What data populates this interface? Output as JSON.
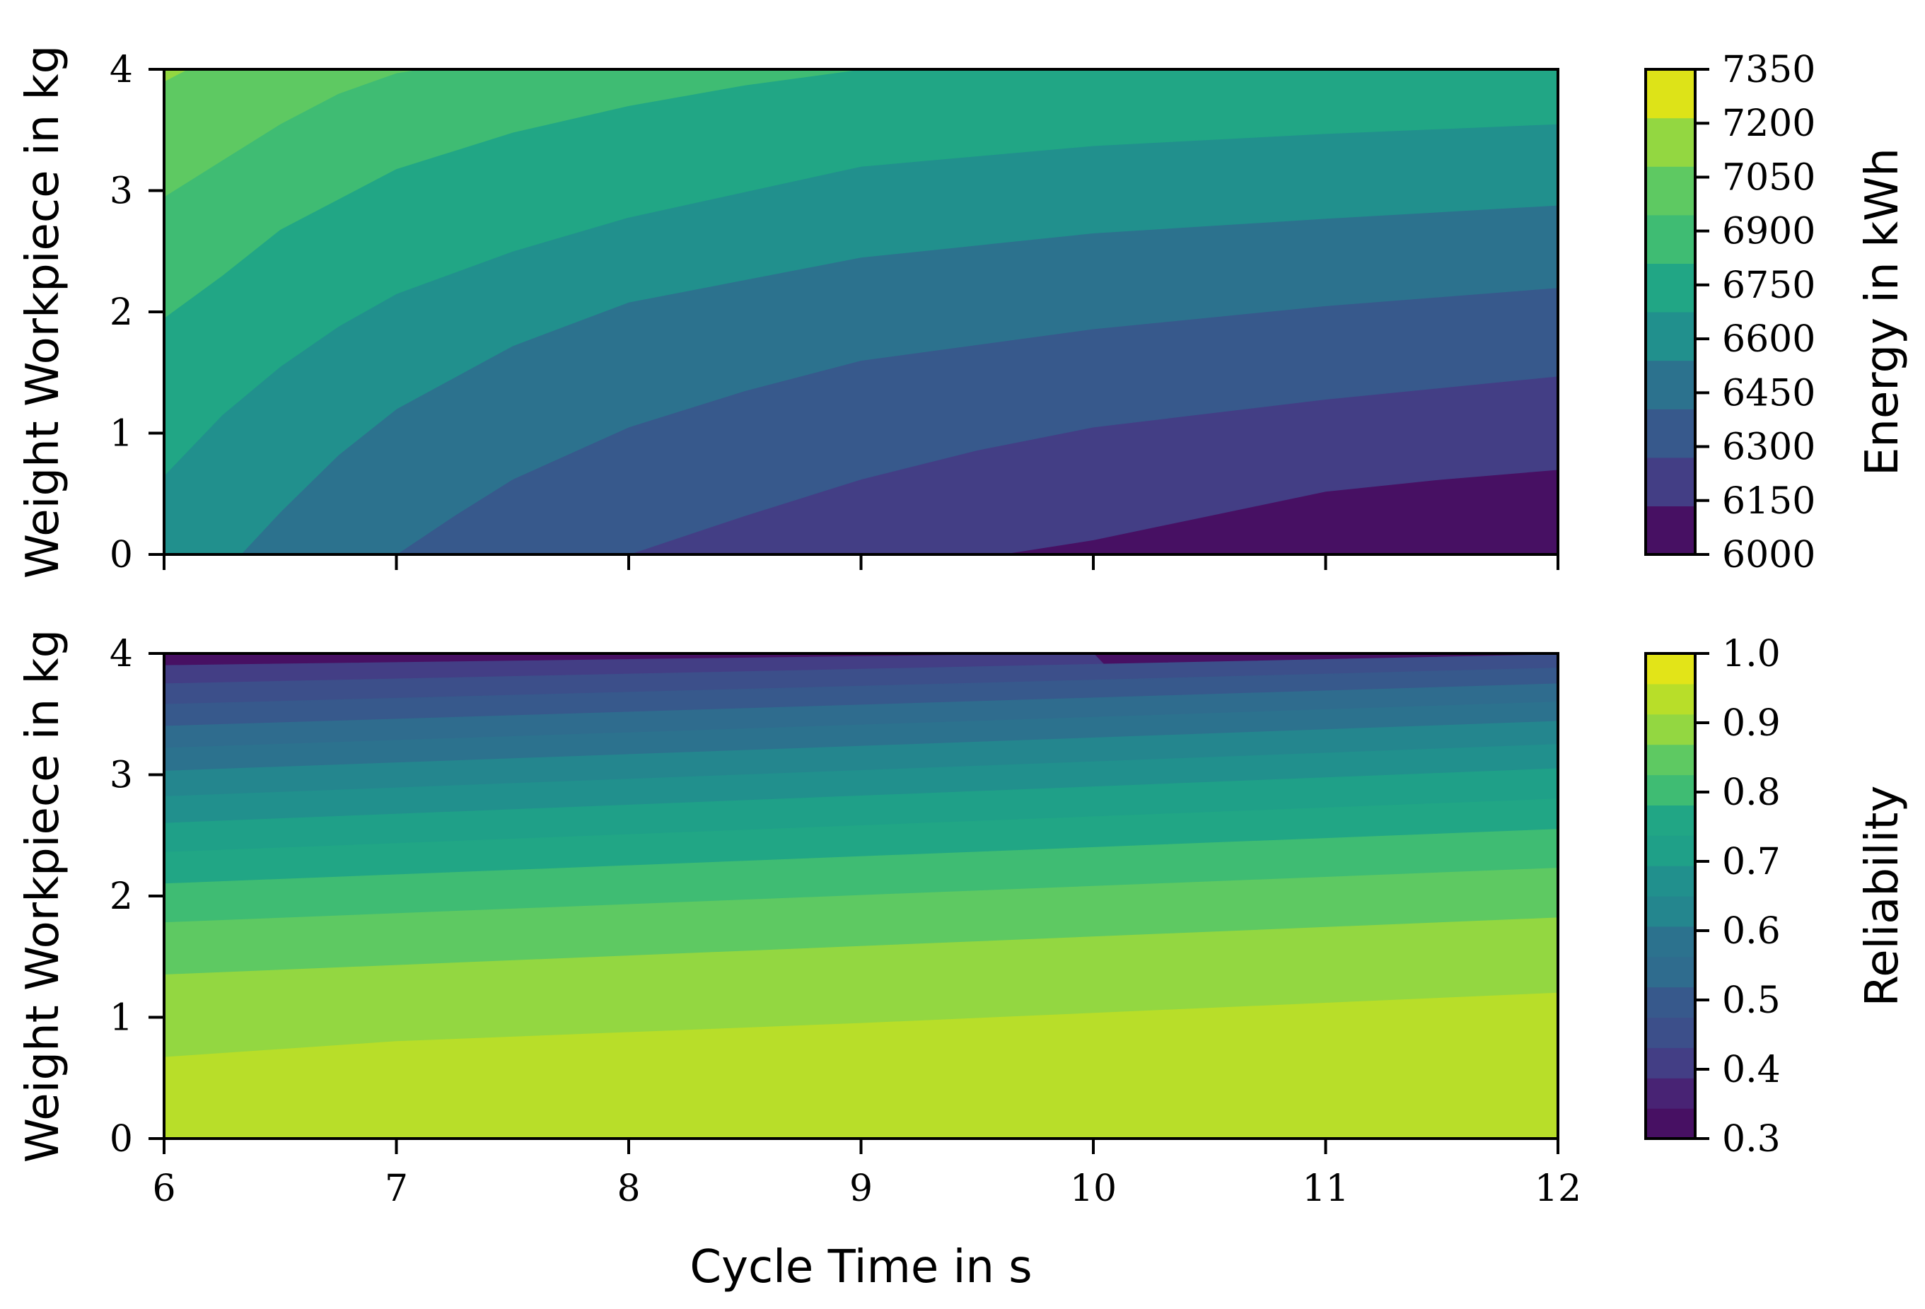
{
  "figure": {
    "shared_xlabel": "Cycle Time in s"
  },
  "chart_data": [
    {
      "type": "heatmap",
      "plot_style": "filled-contour",
      "xlabel": "",
      "ylabel": "Weight Workpiece in kg",
      "colorbar_label": "Energy in kWh",
      "colormap": "viridis",
      "xlim": [
        6,
        12
      ],
      "ylim": [
        0,
        4
      ],
      "x_ticks": [
        "6",
        "7",
        "8",
        "9",
        "10",
        "11",
        "12"
      ],
      "x_tick_labels_visible": false,
      "y_ticks": [
        "0",
        "1",
        "2",
        "3",
        "4"
      ],
      "colorbar_ticks": [
        "6000",
        "6150",
        "6300",
        "6450",
        "6600",
        "6750",
        "6900",
        "7050",
        "7200",
        "7350"
      ],
      "levels": [
        6000,
        6150,
        6300,
        6450,
        6600,
        6750,
        6900,
        7050,
        7200,
        7350
      ],
      "level_colors": [
        "#471063",
        "#433e85",
        "#37598c",
        "#2c728e",
        "#21908d",
        "#21a685",
        "#3fbc73",
        "#5ec962",
        "#93d741",
        "#dde318"
      ],
      "contour_lines": [
        {
          "level": 6150,
          "points": [
            [
              9.6,
              0
            ],
            [
              10,
              0.12
            ],
            [
              10.5,
              0.32
            ],
            [
              11,
              0.52
            ],
            [
              11.5,
              0.62
            ],
            [
              12,
              0.7
            ]
          ]
        },
        {
          "level": 6300,
          "points": [
            [
              8,
              0
            ],
            [
              8.5,
              0.32
            ],
            [
              9,
              0.62
            ],
            [
              9.5,
              0.86
            ],
            [
              10,
              1.05
            ],
            [
              11,
              1.28
            ],
            [
              12,
              1.47
            ]
          ]
        },
        {
          "level": 6450,
          "points": [
            [
              7,
              0
            ],
            [
              7.25,
              0.32
            ],
            [
              7.5,
              0.62
            ],
            [
              8,
              1.05
            ],
            [
              8.5,
              1.35
            ],
            [
              9,
              1.6
            ],
            [
              10,
              1.86
            ],
            [
              11,
              2.05
            ],
            [
              12,
              2.2
            ]
          ]
        },
        {
          "level": 6600,
          "points": [
            [
              6.33,
              0
            ],
            [
              6.5,
              0.35
            ],
            [
              6.75,
              0.82
            ],
            [
              7,
              1.2
            ],
            [
              7.5,
              1.72
            ],
            [
              8,
              2.08
            ],
            [
              9,
              2.45
            ],
            [
              10,
              2.65
            ],
            [
              11,
              2.77
            ],
            [
              12,
              2.88
            ]
          ]
        },
        {
          "level": 6750,
          "points": [
            [
              6,
              0.65
            ],
            [
              6.25,
              1.15
            ],
            [
              6.5,
              1.55
            ],
            [
              6.75,
              1.88
            ],
            [
              7,
              2.15
            ],
            [
              7.5,
              2.5
            ],
            [
              8,
              2.78
            ],
            [
              9,
              3.2
            ],
            [
              10,
              3.37
            ],
            [
              11,
              3.47
            ],
            [
              12,
              3.55
            ]
          ]
        },
        {
          "level": 6900,
          "points": [
            [
              6,
              1.95
            ],
            [
              6.25,
              2.3
            ],
            [
              6.5,
              2.68
            ],
            [
              7,
              3.18
            ],
            [
              7.5,
              3.48
            ],
            [
              8,
              3.7
            ],
            [
              8.5,
              3.87
            ],
            [
              9,
              4
            ]
          ]
        },
        {
          "level": 7050,
          "points": [
            [
              6,
              2.95
            ],
            [
              6.25,
              3.25
            ],
            [
              6.5,
              3.55
            ],
            [
              6.75,
              3.8
            ],
            [
              7,
              3.97
            ],
            [
              7.1,
              4
            ]
          ]
        },
        {
          "level": 7200,
          "points": [
            [
              6,
              3.9
            ],
            [
              6.1,
              4
            ]
          ]
        }
      ]
    },
    {
      "type": "heatmap",
      "plot_style": "filled-contour",
      "xlabel": "Cycle Time in s",
      "ylabel": "Weight Workpiece in kg",
      "colorbar_label": "Reliability",
      "colormap": "viridis",
      "xlim": [
        6,
        12
      ],
      "ylim": [
        0,
        4
      ],
      "x_ticks": [
        "6",
        "7",
        "8",
        "9",
        "10",
        "11",
        "12"
      ],
      "x_tick_labels_visible": true,
      "y_ticks": [
        "0",
        "1",
        "2",
        "3",
        "4"
      ],
      "colorbar_ticks": [
        "0.3",
        "0.4",
        "0.5",
        "0.6",
        "0.7",
        "0.8",
        "0.9",
        "1.0"
      ],
      "levels": [
        0.3,
        0.35,
        0.4,
        0.45,
        0.5,
        0.55,
        0.6,
        0.65,
        0.7,
        0.75,
        0.8,
        0.85,
        0.9,
        0.95,
        1.0
      ],
      "level_colors": [
        "#471063",
        "#482374",
        "#433e85",
        "#3c4f8a",
        "#37598c",
        "#2f6c8e",
        "#2c728e",
        "#24868e",
        "#21908d",
        "#1fa088",
        "#21a685",
        "#3fbc73",
        "#5ec962",
        "#93d741",
        "#b8de29",
        "#e2e418"
      ],
      "contour_lines": [
        {
          "level": 0.95,
          "points": [
            [
              6,
              0.67
            ],
            [
              7,
              0.8
            ],
            [
              9,
              0.95
            ],
            [
              12,
              1.2
            ]
          ]
        },
        {
          "level": 0.9,
          "points": [
            [
              6,
              1.35
            ],
            [
              12,
              1.82
            ]
          ]
        },
        {
          "level": 0.85,
          "points": [
            [
              6,
              1.78
            ],
            [
              12,
              2.23
            ]
          ]
        },
        {
          "level": 0.8,
          "points": [
            [
              6,
              2.1
            ],
            [
              12,
              2.55
            ]
          ]
        },
        {
          "level": 0.75,
          "points": [
            [
              6,
              2.36
            ],
            [
              12,
              2.8
            ]
          ]
        },
        {
          "level": 0.7,
          "points": [
            [
              6,
              2.6
            ],
            [
              12,
              3.05
            ]
          ]
        },
        {
          "level": 0.65,
          "points": [
            [
              6,
              2.82
            ],
            [
              12,
              3.25
            ]
          ]
        },
        {
          "level": 0.6,
          "points": [
            [
              6,
              3.03
            ],
            [
              12,
              3.44
            ]
          ]
        },
        {
          "level": 0.55,
          "points": [
            [
              6,
              3.22
            ],
            [
              12,
              3.6
            ]
          ]
        },
        {
          "level": 0.5,
          "points": [
            [
              6,
              3.4
            ],
            [
              12,
              3.75
            ]
          ]
        },
        {
          "level": 0.45,
          "points": [
            [
              6,
              3.58
            ],
            [
              12,
              3.88
            ]
          ]
        },
        {
          "level": 0.4,
          "points": [
            [
              6,
              3.75
            ],
            [
              12,
              3.99
            ]
          ]
        },
        {
          "level": 0.35,
          "points": [
            [
              6,
              3.9
            ],
            [
              10,
              4
            ]
          ]
        }
      ]
    }
  ]
}
